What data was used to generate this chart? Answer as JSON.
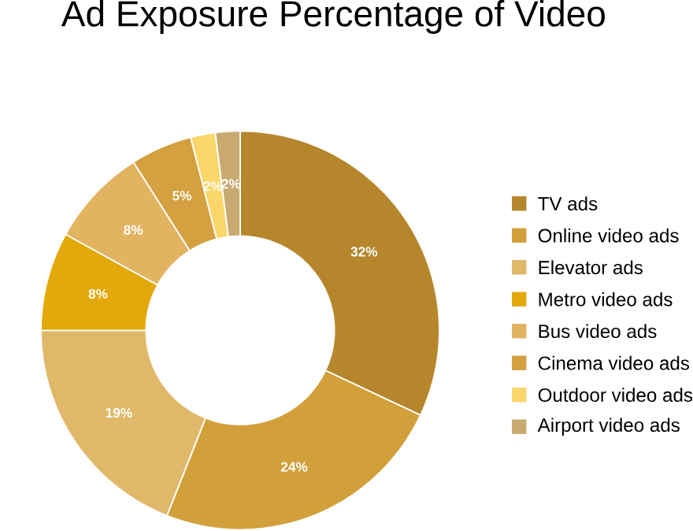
{
  "chart_data": {
    "type": "donut",
    "title": "Ad Exposure Percentage of Video",
    "categories": [
      "TV ads",
      "Online video ads",
      "Elevator ads",
      "Metro video ads",
      "Bus video ads",
      "Cinema video ads",
      "Outdoor video ads",
      "Airport video ads"
    ],
    "values": [
      32,
      24,
      19,
      8,
      8,
      5,
      2,
      2
    ],
    "value_labels": [
      "32%",
      "24%",
      "19%",
      "8%",
      "8%",
      "5%",
      "2%",
      "2%"
    ],
    "colors": [
      "#b5862c",
      "#d2a03a",
      "#e0b86a",
      "#e3a80a",
      "#e2b462",
      "#d4a040",
      "#fbd66a",
      "#c8aa70"
    ],
    "legend": "right"
  }
}
